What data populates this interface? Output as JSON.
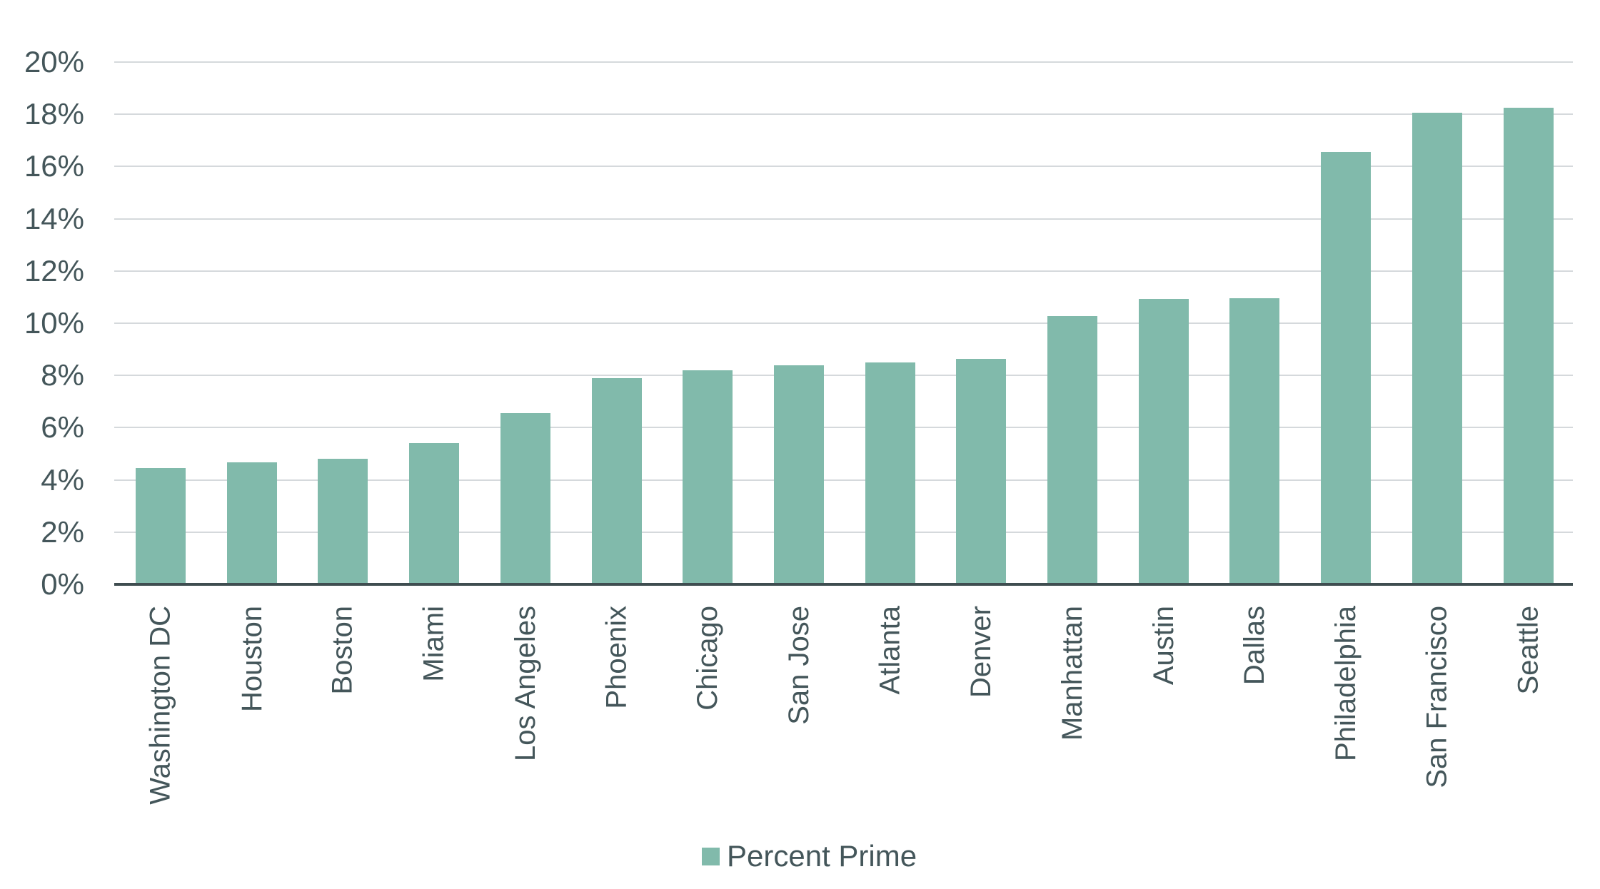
{
  "chart_data": {
    "type": "bar",
    "title": "",
    "xlabel": "",
    "ylabel": "",
    "ylim": [
      0,
      20
    ],
    "yticks": [
      "0%",
      "2%",
      "4%",
      "6%",
      "8%",
      "10%",
      "12%",
      "14%",
      "16%",
      "18%",
      "20%"
    ],
    "grid": true,
    "legend_position": "bottom",
    "categories": [
      "Washington DC",
      "Houston",
      "Boston",
      "Miami",
      "Los Angeles",
      "Phoenix",
      "Chicago",
      "San Jose",
      "Atlanta",
      "Denver",
      "Manhattan",
      "Austin",
      "Dallas",
      "Philadelphia",
      "San Francisco",
      "Seattle"
    ],
    "series": [
      {
        "name": "Percent Prime",
        "color": "#81baab",
        "values": [
          4.46,
          4.68,
          4.81,
          5.41,
          6.55,
          7.89,
          8.19,
          8.38,
          8.49,
          8.64,
          10.26,
          10.93,
          10.96,
          16.57,
          18.07,
          18.24
        ]
      }
    ]
  },
  "legend": {
    "label": "Percent Prime"
  }
}
